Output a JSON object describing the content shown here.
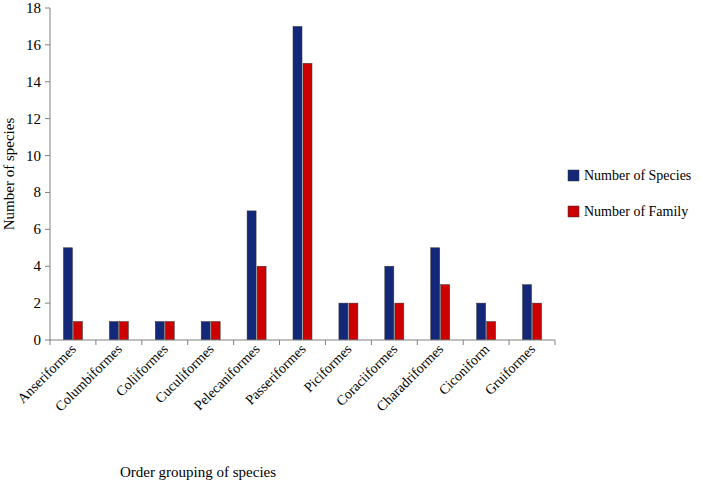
{
  "chart_data": {
    "type": "bar",
    "x_label": "Order grouping of species",
    "y_label": "Number of species",
    "categories": [
      "Anseriformes",
      "Columbiformes",
      "Coliiformes",
      "Cuculiformes",
      "Pelecaniformes",
      "Passeriformes",
      "Piciformes",
      "Coraciiformes",
      "Charadriformes",
      "Ciconiform",
      "Gruiformes"
    ],
    "series": [
      {
        "name": "Number of Species",
        "color": "#14287a",
        "values": [
          5,
          1,
          1,
          1,
          7,
          17,
          2,
          4,
          5,
          2,
          3
        ]
      },
      {
        "name": "Number of Family",
        "color": "#cc0000",
        "values": [
          1,
          1,
          1,
          1,
          4,
          15,
          2,
          2,
          3,
          1,
          2
        ]
      }
    ],
    "ylim": [
      0,
      18
    ],
    "yticks": [
      0,
      2,
      4,
      6,
      8,
      10,
      12,
      14,
      16,
      18
    ],
    "grid": false,
    "legend": "right"
  }
}
